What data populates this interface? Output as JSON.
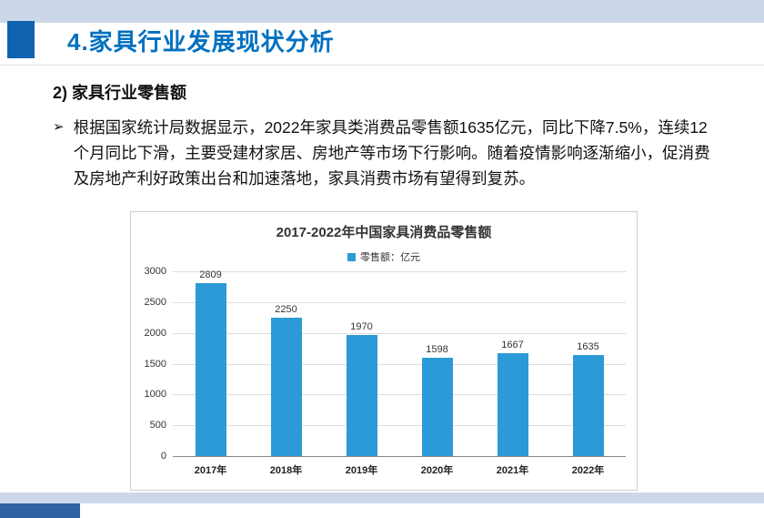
{
  "slide": {
    "title": "4.家具行业发展现状分析",
    "subtitle": "2) 家具行业零售额",
    "bullet_marker": "➢",
    "bullet_text": "根据国家统计局数据显示，2022年家具类消费品零售额1635亿元，同比下降7.5%，连续12个月同比下滑，主要受建材家居、房地产等市场下行影响。随着疫情影响逐渐缩小，促消费及房地产利好政策出台和加速落地，家具消费市场有望得到复苏。"
  },
  "colors": {
    "accent_dark_blue": "#1063ae",
    "title_blue": "#0070c0",
    "strip_light_blue": "#ccd8ea",
    "footer_dark_blue": "#2f62a0",
    "bar_blue": "#2b9ad6"
  },
  "chart_data": {
    "type": "bar",
    "title": "2017-2022年中国家具消费品零售额",
    "legend": "零售额：亿元",
    "categories": [
      "2017年",
      "2018年",
      "2019年",
      "2020年",
      "2021年",
      "2022年"
    ],
    "values": [
      2809,
      2250,
      1970,
      1598,
      1667,
      1635
    ],
    "xlabel": "",
    "ylabel": "",
    "ylim": [
      0,
      3000
    ],
    "ytick_step": 500,
    "grid": true,
    "legend_position": "top"
  }
}
